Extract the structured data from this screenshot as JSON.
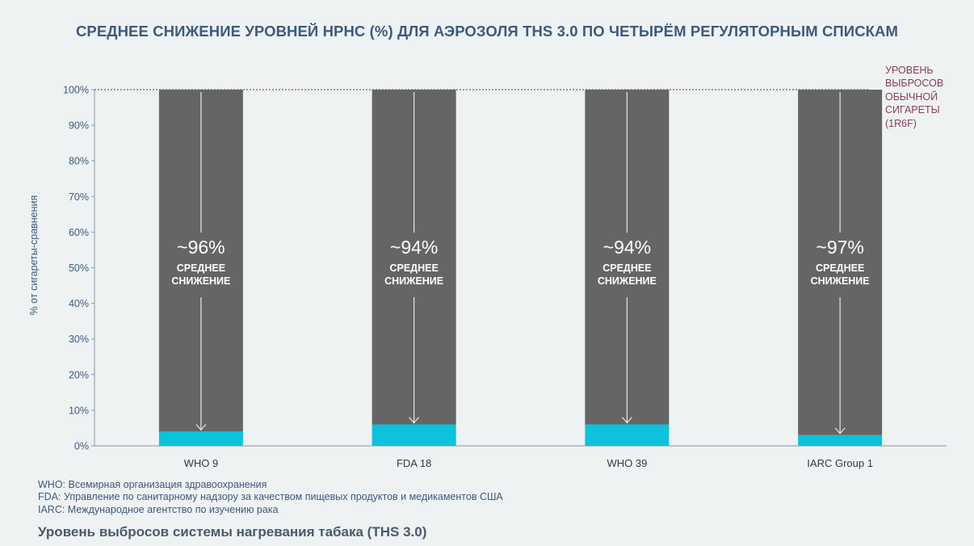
{
  "chart_data": {
    "type": "bar",
    "title": "СРЕДНЕЕ СНИЖЕНИЕ УРОВНЕЙ HPHC (%) ДЛЯ АЭРОЗОЛЯ THS 3.0 ПО ЧЕТЫРЁМ РЕГУЛЯТОРНЫМ СПИСКАМ",
    "ylabel": "% от сигареты-сравнения",
    "ylim": [
      0,
      100
    ],
    "yticks": [
      "0%",
      "10%",
      "20%",
      "30%",
      "40%",
      "50%",
      "60%",
      "70%",
      "80%",
      "90%",
      "100%"
    ],
    "categories": [
      "WHO 9",
      "FDA 18",
      "WHO 39",
      "IARC Group 1"
    ],
    "series": [
      {
        "values": [
          4,
          6,
          6,
          3
        ]
      }
    ],
    "reduction_labels": [
      "~96%",
      "~94%",
      "~94%",
      "~97%"
    ],
    "reduction_caption_line1": "СРЕДНЕЕ",
    "reduction_caption_line2": "СНИЖЕНИЕ",
    "reference_line": {
      "value": 100,
      "label": "УРОВЕНЬ ВЫБРОСОВ ОБЫЧНОЙ СИГАРЕТЫ (1R6F)"
    },
    "colors": {
      "bar": "#656565",
      "series": "#0cc2dc",
      "reference": "#9b4a5e",
      "axis_text": "#3c5a7e"
    },
    "grid": false
  },
  "footnotes": [
    "WHO: Всемирная организация здравоохранения",
    "FDA: Управление по санитарному надзору за качеством пищевых продуктов и медикаментов США",
    "IARC: Международное агентство по изучению рака"
  ],
  "legend_title": "Уровень выбросов системы нагревания табака (THS 3.0)"
}
